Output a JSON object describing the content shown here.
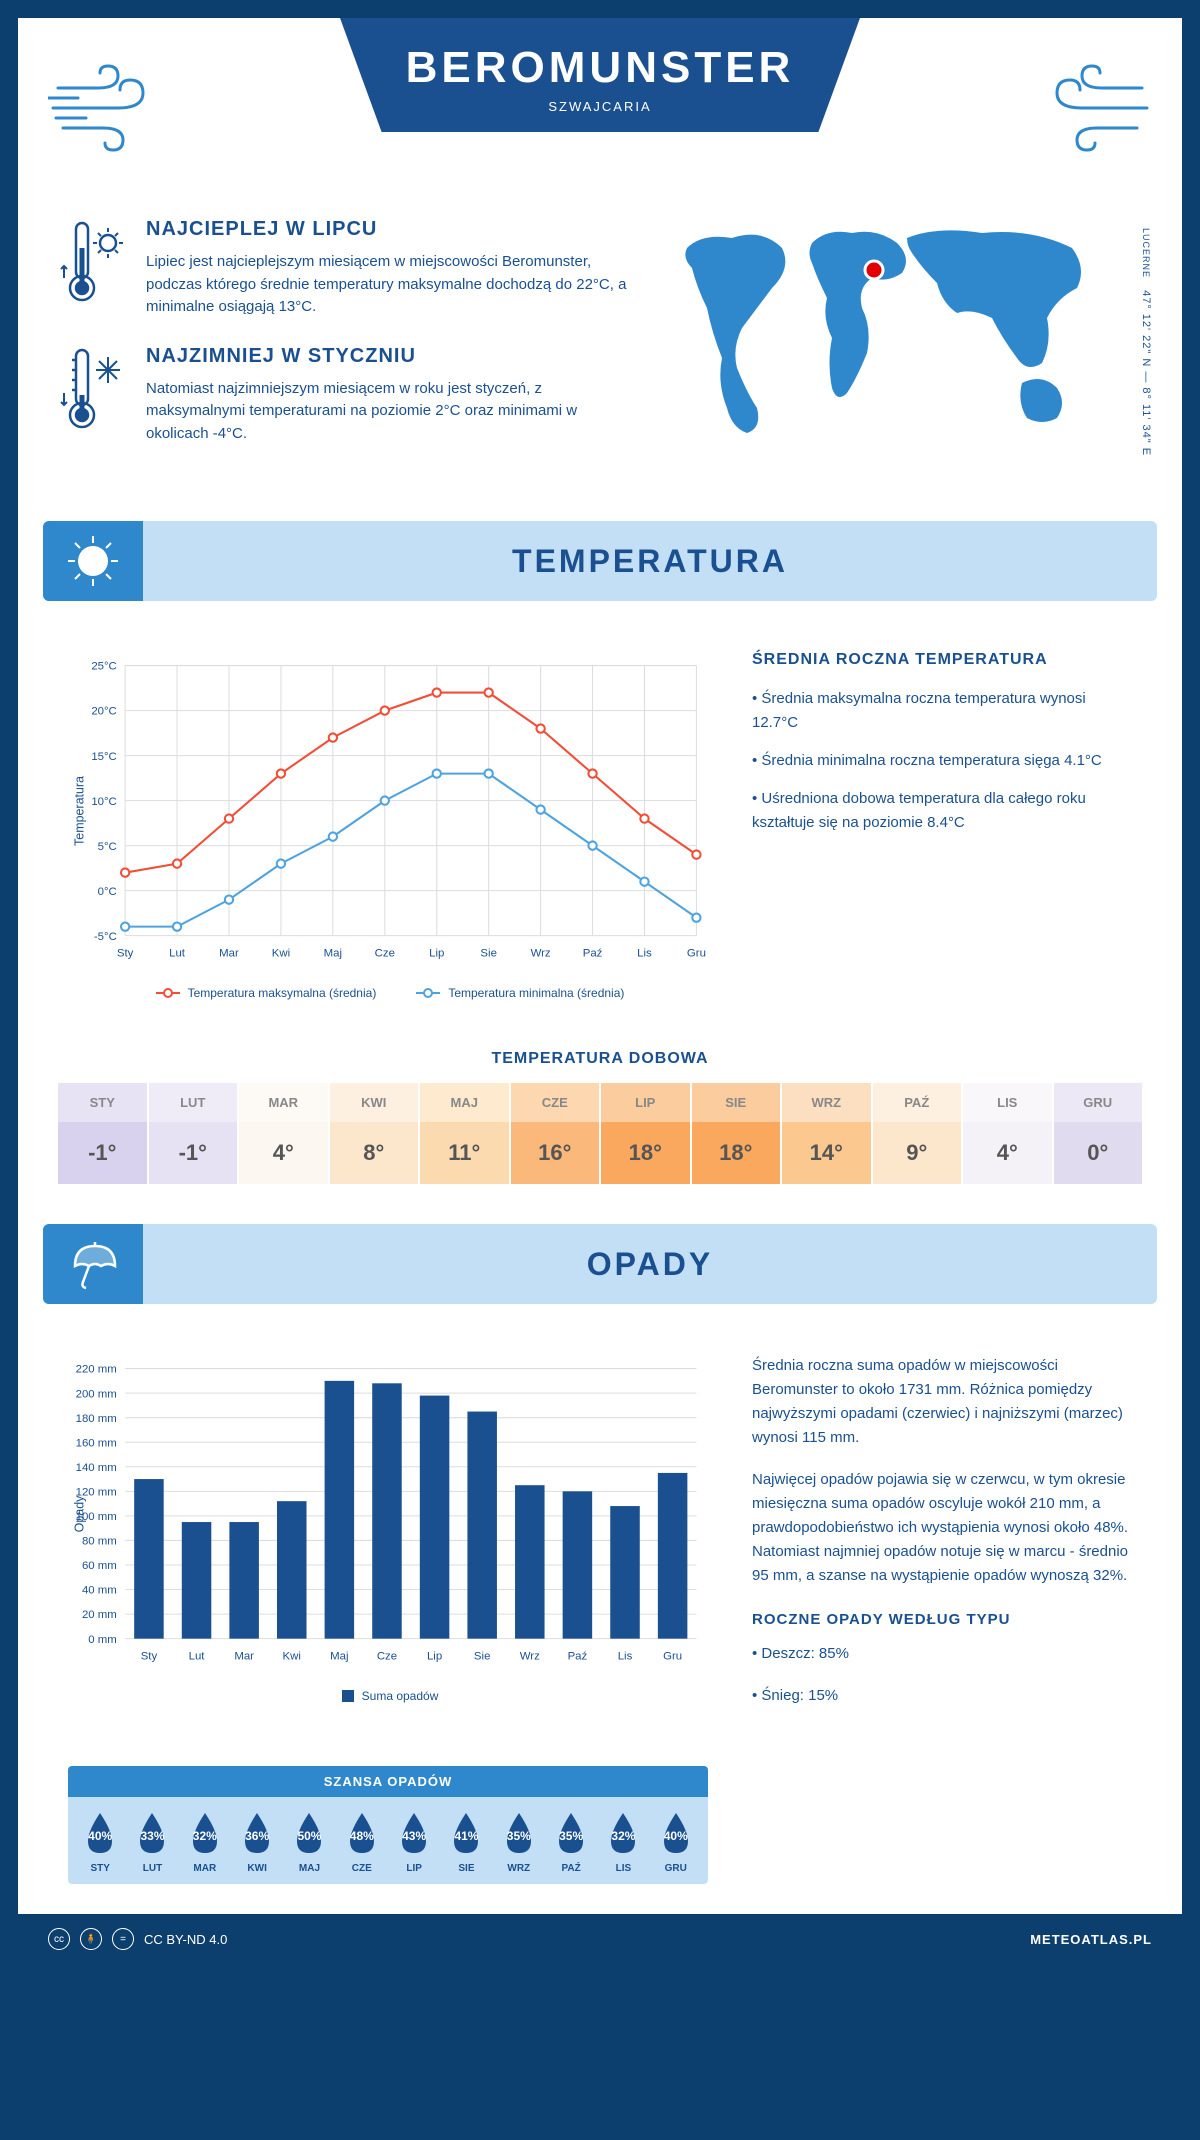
{
  "header": {
    "title": "BEROMUNSTER",
    "subtitle": "SZWAJCARIA"
  },
  "coords": {
    "label": "LUCERNE",
    "value": "47° 12' 22\" N — 8° 11' 34\" E"
  },
  "facts": {
    "hot": {
      "title": "NAJCIEPLEJ W LIPCU",
      "text": "Lipiec jest najcieplejszym miesiącem w miejscowości Beromunster, podczas którego średnie temperatury maksymalne dochodzą do 22°C, a minimalne osiągają 13°C."
    },
    "cold": {
      "title": "NAJZIMNIEJ W STYCZNIU",
      "text": "Natomiast najzimniejszym miesiącem w roku jest styczeń, z maksymalnymi temperaturami na poziomie 2°C oraz minimami w okolicach -4°C."
    }
  },
  "months": [
    "Sty",
    "Lut",
    "Mar",
    "Kwi",
    "Maj",
    "Cze",
    "Lip",
    "Sie",
    "Wrz",
    "Paź",
    "Lis",
    "Gru"
  ],
  "months_upper": [
    "STY",
    "LUT",
    "MAR",
    "KWI",
    "MAJ",
    "CZE",
    "LIP",
    "SIE",
    "WRZ",
    "PAŹ",
    "LIS",
    "GRU"
  ],
  "temp_section": {
    "title": "TEMPERATURA"
  },
  "temp_chart": {
    "type": "line",
    "ylabel": "Temperatura",
    "ylim": [
      -5,
      25
    ],
    "ytick_step": 5,
    "ytick_suffix": "°C",
    "max_color": "#f04e37",
    "min_color": "#4da3e0",
    "grid_color": "#dddddd",
    "bg_color": "#ffffff",
    "max_series": [
      2,
      3,
      8,
      13,
      17,
      20,
      22,
      22,
      18,
      13,
      8,
      4
    ],
    "min_series": [
      -4,
      -4,
      -1,
      3,
      6,
      10,
      13,
      13,
      9,
      5,
      1,
      -3
    ],
    "legend_max": "Temperatura maksymalna (średnia)",
    "legend_min": "Temperatura minimalna (średnia)"
  },
  "temp_info": {
    "title": "ŚREDNIA ROCZNA TEMPERATURA",
    "b1": "• Średnia maksymalna roczna temperatura wynosi 12.7°C",
    "b2": "• Średnia minimalna roczna temperatura sięga 4.1°C",
    "b3": "• Uśredniona dobowa temperatura dla całego roku kształtuje się na poziomie 8.4°C"
  },
  "daily": {
    "title": "TEMPERATURA DOBOWA",
    "values": [
      "-1°",
      "-1°",
      "4°",
      "8°",
      "11°",
      "16°",
      "18°",
      "18°",
      "14°",
      "9°",
      "4°",
      "0°"
    ],
    "cell_bg": [
      "#d9d2ef",
      "#e6e1f3",
      "#fcf7f0",
      "#fce7cc",
      "#fcdab0",
      "#fab97a",
      "#f9a85e",
      "#f9a85e",
      "#fbc890",
      "#fce7cc",
      "#f5f2f7",
      "#e1dbf0"
    ],
    "header_bg": [
      "#e8e3f4",
      "#f0ecf7",
      "#fdfaf5",
      "#fdf0e0",
      "#fdeacf",
      "#fcd7b0",
      "#fbcc9d",
      "#fbcc9d",
      "#fcdfc0",
      "#fdf0e0",
      "#f9f7fa",
      "#ede8f5"
    ]
  },
  "precip_section": {
    "title": "OPADY"
  },
  "precip_chart": {
    "type": "bar",
    "ylabel": "Opady",
    "ylim": [
      0,
      220
    ],
    "ytick_step": 20,
    "ytick_suffix": " mm",
    "bar_color": "#1a5090",
    "grid_color": "#dddddd",
    "values": [
      130,
      95,
      95,
      112,
      210,
      208,
      198,
      185,
      125,
      120,
      108,
      135
    ],
    "legend": "Suma opadów"
  },
  "precip_info": {
    "p1": "Średnia roczna suma opadów w miejscowości Beromunster to około 1731 mm. Różnica pomiędzy najwyższymi opadami (czerwiec) i najniższymi (marzec) wynosi 115 mm.",
    "p2": "Najwięcej opadów pojawia się w czerwcu, w tym okresie miesięczna suma opadów oscyluje wokół 210 mm, a prawdopodobieństwo ich wystąpienia wynosi około 48%. Natomiast najmniej opadów notuje się w marcu - średnio 95 mm, a szanse na wystąpienie opadów wynoszą 32%.",
    "type_title": "ROCZNE OPADY WEDŁUG TYPU",
    "t1": "• Deszcz: 85%",
    "t2": "• Śnieg: 15%"
  },
  "chance": {
    "title": "SZANSA OPADÓW",
    "values": [
      "40%",
      "33%",
      "32%",
      "36%",
      "50%",
      "48%",
      "43%",
      "41%",
      "35%",
      "35%",
      "32%",
      "40%"
    ],
    "drop_color": "#1a5090"
  },
  "footer": {
    "license": "CC BY-ND 4.0",
    "site": "METEOATLAS.PL"
  }
}
